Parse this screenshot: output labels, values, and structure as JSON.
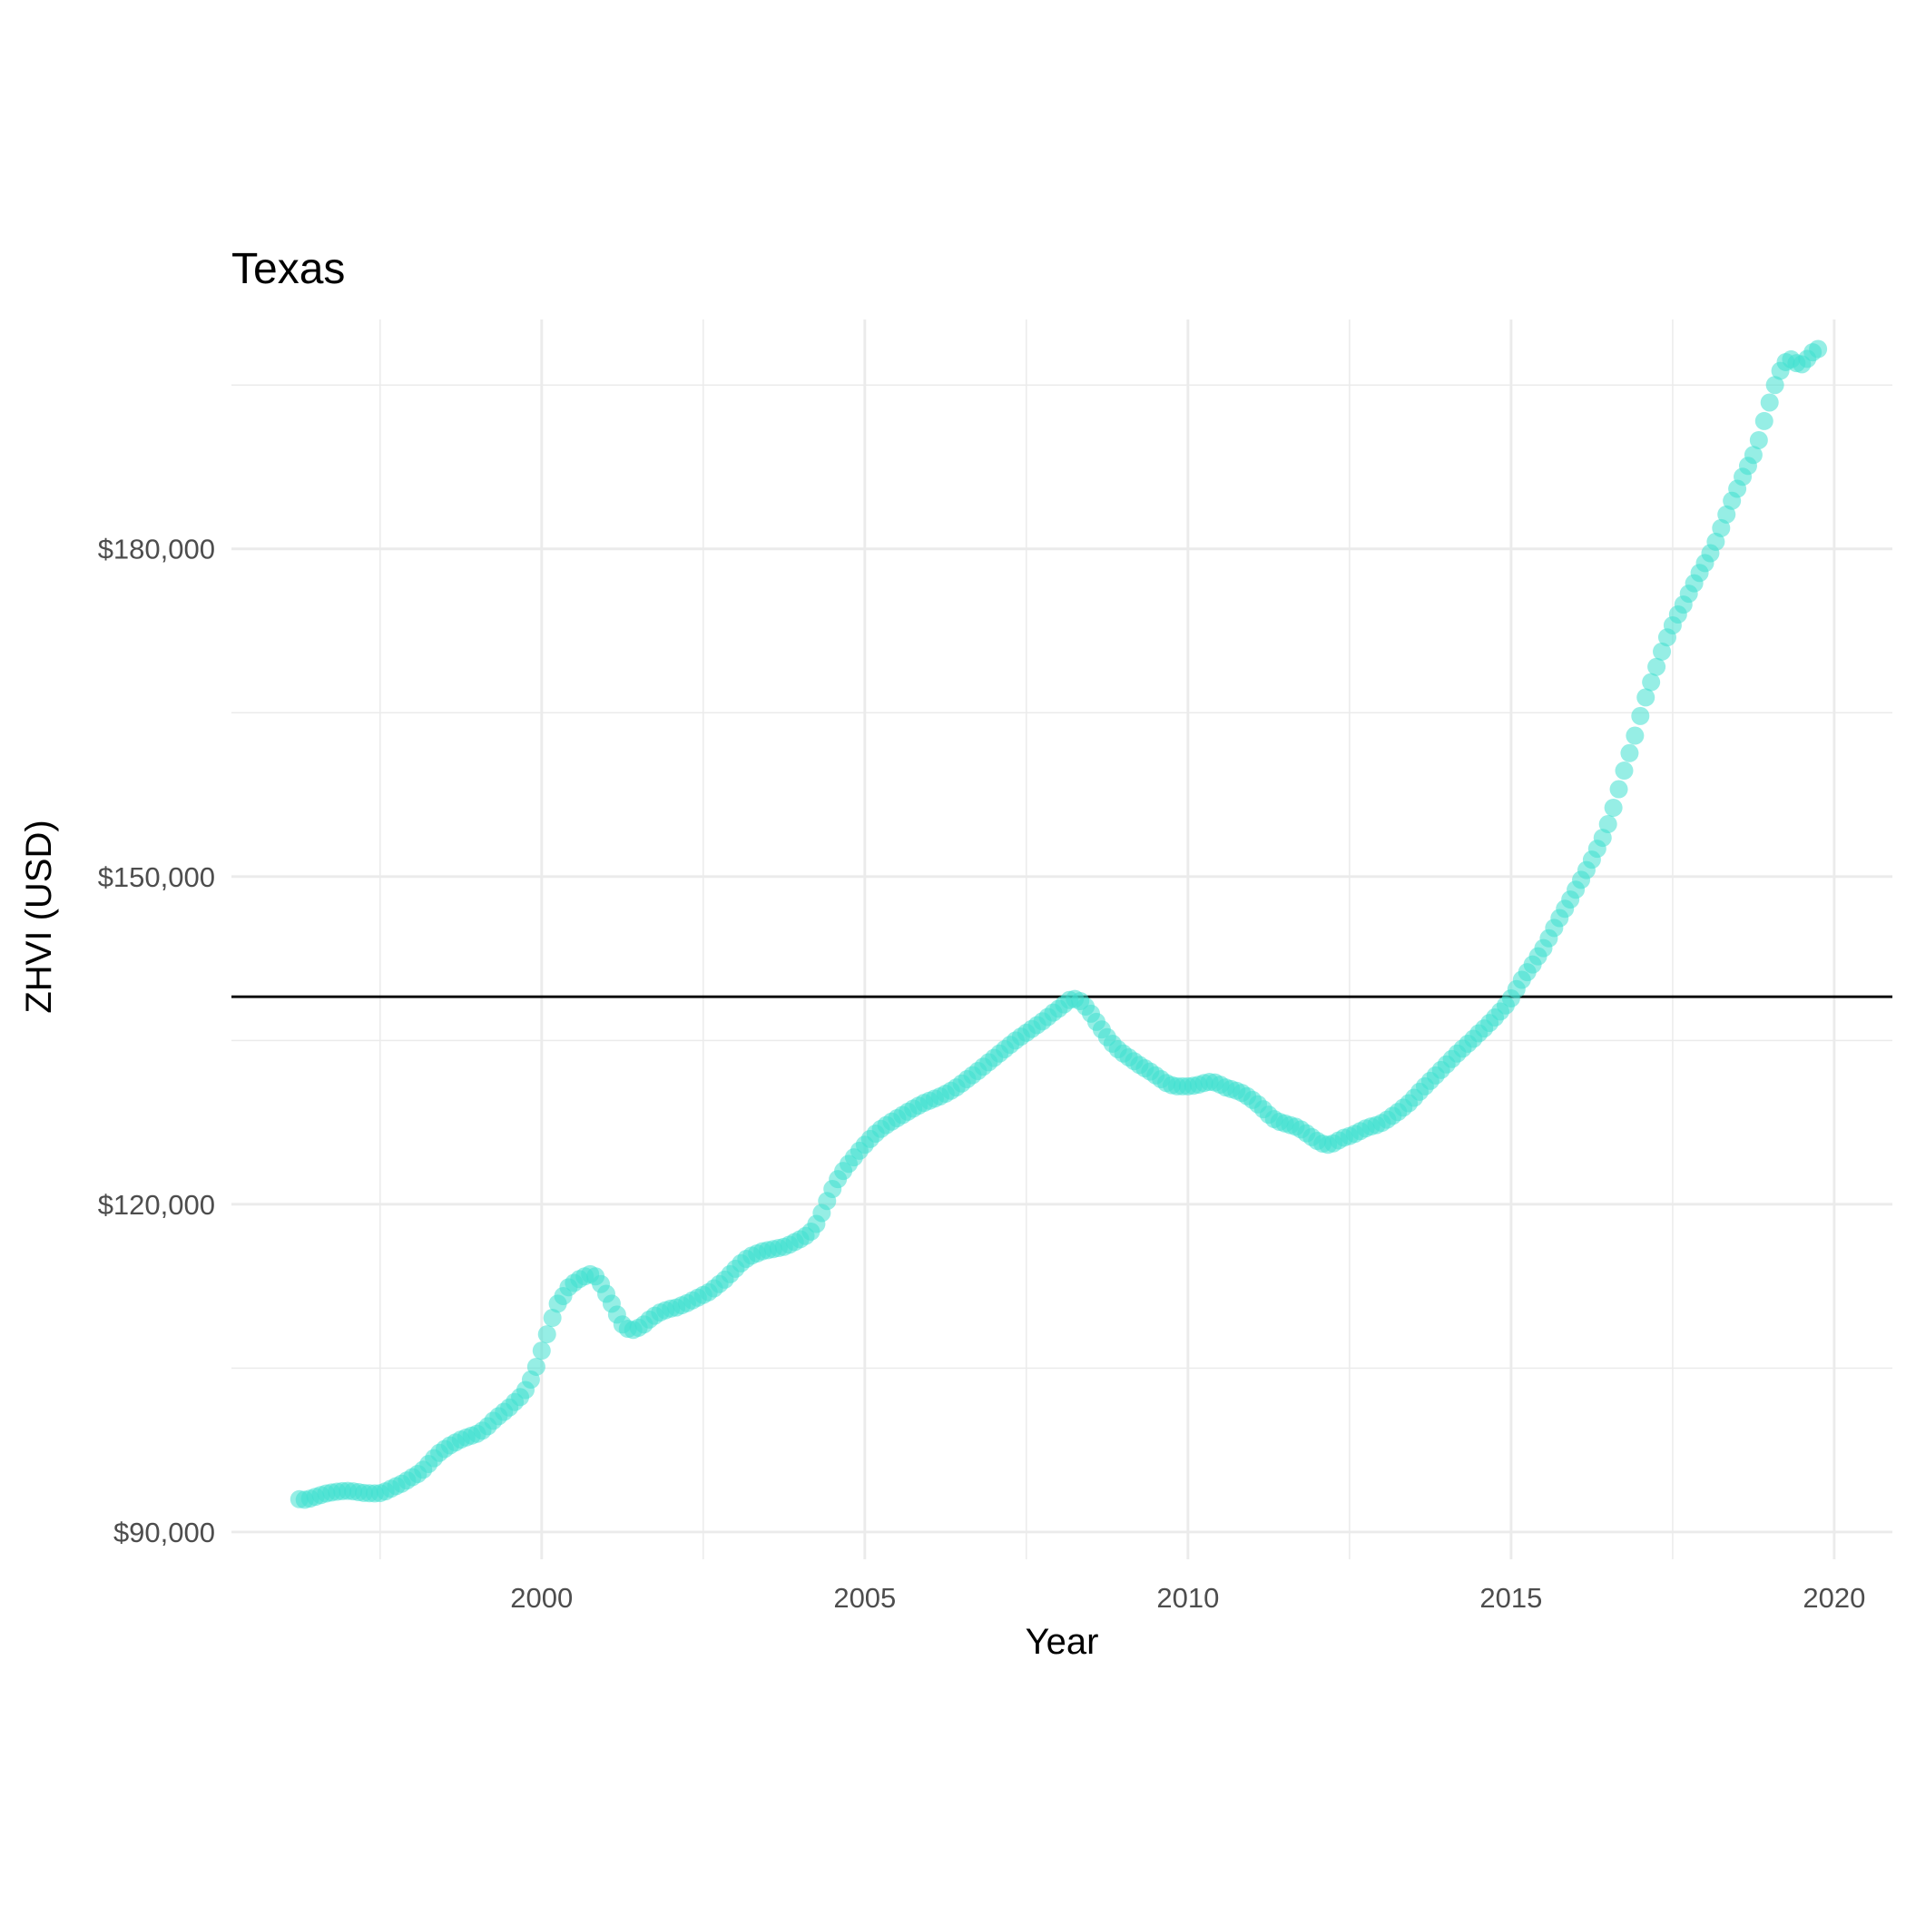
{
  "chart_data": {
    "type": "scatter",
    "title": "Texas",
    "xlabel": "Year",
    "ylabel": "ZHVI (USD)",
    "xlim": [
      1995.2,
      2020.9
    ],
    "ylim": [
      87500,
      201000
    ],
    "x_ticks": [
      2000,
      2005,
      2010,
      2015,
      2020
    ],
    "x_tick_labels": [
      "2000",
      "2005",
      "2010",
      "2015",
      "2020"
    ],
    "x_minor_ticks": [
      1997.5,
      2002.5,
      2007.5,
      2012.5,
      2017.5
    ],
    "y_ticks": [
      90000,
      120000,
      150000,
      180000
    ],
    "y_tick_labels": [
      "$90,000",
      "$120,000",
      "$150,000",
      "$180,000"
    ],
    "y_minor_ticks": [
      105000,
      135000,
      165000,
      195000
    ],
    "reference_line": {
      "orientation": "horizontal",
      "y": 139000,
      "color": "#000000"
    },
    "grid": true,
    "legend": "none",
    "point_color": "#40E0D0",
    "point_alpha": 0.55,
    "series": [
      {
        "x_start": 1996.25,
        "x_step_months": 1,
        "values": [
          93000,
          92950,
          93060,
          93220,
          93380,
          93520,
          93620,
          93690,
          93740,
          93760,
          93720,
          93650,
          93580,
          93550,
          93530,
          93560,
          93720,
          93960,
          94200,
          94420,
          94720,
          95020,
          95310,
          95700,
          96220,
          96750,
          97240,
          97600,
          97930,
          98200,
          98460,
          98650,
          98820,
          98990,
          99280,
          99680,
          100180,
          100600,
          101000,
          101400,
          101900,
          102350,
          103000,
          103950,
          105120,
          106600,
          108100,
          109600,
          110900,
          111600,
          112400,
          112800,
          113150,
          113400,
          113600,
          113400,
          112700,
          111800,
          110900,
          109900,
          109000,
          108600,
          108500,
          108700,
          109000,
          109450,
          109800,
          110100,
          110300,
          110450,
          110550,
          110750,
          110950,
          111200,
          111450,
          111700,
          111950,
          112300,
          112700,
          113100,
          113600,
          114100,
          114600,
          115000,
          115300,
          115500,
          115700,
          115800,
          115900,
          116000,
          116100,
          116300,
          116550,
          116800,
          117100,
          117500,
          118200,
          119200,
          120300,
          121400,
          122300,
          123050,
          123700,
          124300,
          124900,
          125450,
          125980,
          126470,
          126900,
          127250,
          127570,
          127880,
          128170,
          128470,
          128760,
          129030,
          129280,
          129480,
          129680,
          129880,
          130120,
          130390,
          130700,
          131060,
          131450,
          131820,
          132200,
          132600,
          133000,
          133400,
          133800,
          134200,
          134600,
          135000,
          135350,
          135700,
          136050,
          136400,
          136750,
          137150,
          137550,
          137900,
          138300,
          138700,
          138800,
          138600,
          138100,
          137450,
          136700,
          136000,
          135300,
          134700,
          134200,
          133800,
          133450,
          133100,
          132750,
          132450,
          132150,
          131800,
          131450,
          131100,
          130900,
          130800,
          130800,
          130800,
          130850,
          130950,
          131100,
          131200,
          131150,
          130950,
          130700,
          130550,
          130400,
          130200,
          129900,
          129550,
          129150,
          128700,
          128200,
          127800,
          127550,
          127400,
          127250,
          127100,
          126850,
          126500,
          126150,
          125800,
          125550,
          125450,
          125580,
          125850,
          126100,
          126250,
          126450,
          126700,
          126950,
          127120,
          127250,
          127450,
          127750,
          128100,
          128450,
          128850,
          129250,
          129750,
          130300,
          130800,
          131300,
          131800,
          132300,
          132800,
          133300,
          133800,
          134250,
          134700,
          135150,
          135650,
          136100,
          136600,
          137100,
          137650,
          138200,
          138850,
          139700,
          140550,
          141250,
          141950,
          142700,
          143450,
          144350,
          145300,
          146200,
          147050,
          147900,
          148800,
          149700,
          150600,
          151550,
          152550,
          153550,
          154800,
          156300,
          158000,
          159700,
          161300,
          162900,
          164700,
          166400,
          167800,
          169200,
          170600,
          171900,
          173000,
          174000,
          174900,
          175900,
          176850,
          177800,
          178700,
          179600,
          180650,
          181900,
          183150,
          184400,
          185500,
          186600,
          187600,
          188600,
          189950,
          191700,
          193400,
          195000,
          196300,
          197100,
          197350,
          197000,
          196900,
          197400,
          198000,
          198300
        ]
      }
    ]
  }
}
